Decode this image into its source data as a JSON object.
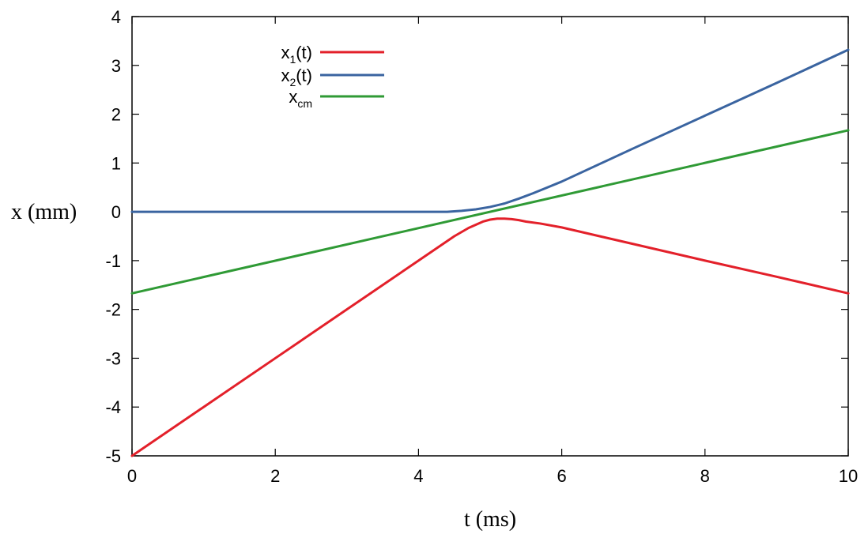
{
  "chart_data": {
    "type": "line",
    "title": "",
    "xlabel": "t (ms)",
    "ylabel": "x (mm)",
    "xlim": [
      0,
      10
    ],
    "ylim": [
      -5,
      4
    ],
    "xticks": [
      0,
      2,
      4,
      6,
      8,
      10
    ],
    "yticks": [
      -5,
      -4,
      -3,
      -2,
      -1,
      0,
      1,
      2,
      3,
      4
    ],
    "xtick_labels": [
      "0",
      "2",
      "4",
      "6",
      "8",
      "10"
    ],
    "ytick_labels": [
      "-5",
      "-4",
      "-3",
      "-2",
      "-1",
      "0",
      "1",
      "2",
      "3",
      "4"
    ],
    "grid": false,
    "legend_position": "top-left",
    "series": [
      {
        "name": "x1(t)",
        "legend_main": "x",
        "legend_sub": "1",
        "legend_tail": "(t)",
        "color": "#e3202a",
        "x": [
          0,
          1,
          2,
          3,
          4,
          4.5,
          4.7,
          4.9,
          5.0,
          5.1,
          5.2,
          5.3,
          5.4,
          5.5,
          5.7,
          6,
          7,
          8,
          9,
          10
        ],
        "y": [
          -5,
          -4,
          -3,
          -2,
          -1,
          -0.5,
          -0.33,
          -0.2,
          -0.16,
          -0.14,
          -0.14,
          -0.15,
          -0.17,
          -0.2,
          -0.24,
          -0.32,
          -0.66,
          -1.0,
          -1.33,
          -1.67
        ]
      },
      {
        "name": "x2(t)",
        "legend_main": "x",
        "legend_sub": "2",
        "legend_tail": "(t)",
        "color": "#3a64a0",
        "x": [
          0,
          1,
          2,
          3,
          4,
          4.4,
          4.6,
          4.8,
          5.0,
          5.2,
          5.4,
          5.6,
          5.8,
          6,
          7,
          8,
          9,
          10
        ],
        "y": [
          0,
          0,
          0,
          0,
          0,
          0.0,
          0.02,
          0.05,
          0.1,
          0.17,
          0.27,
          0.38,
          0.5,
          0.62,
          1.3,
          1.97,
          2.64,
          3.32
        ]
      },
      {
        "name": "xcm",
        "legend_main": "x",
        "legend_sub": "cm",
        "legend_tail": "",
        "color": "#2f9a35",
        "x": [
          0,
          10
        ],
        "y": [
          -1.67,
          1.67
        ]
      }
    ]
  }
}
